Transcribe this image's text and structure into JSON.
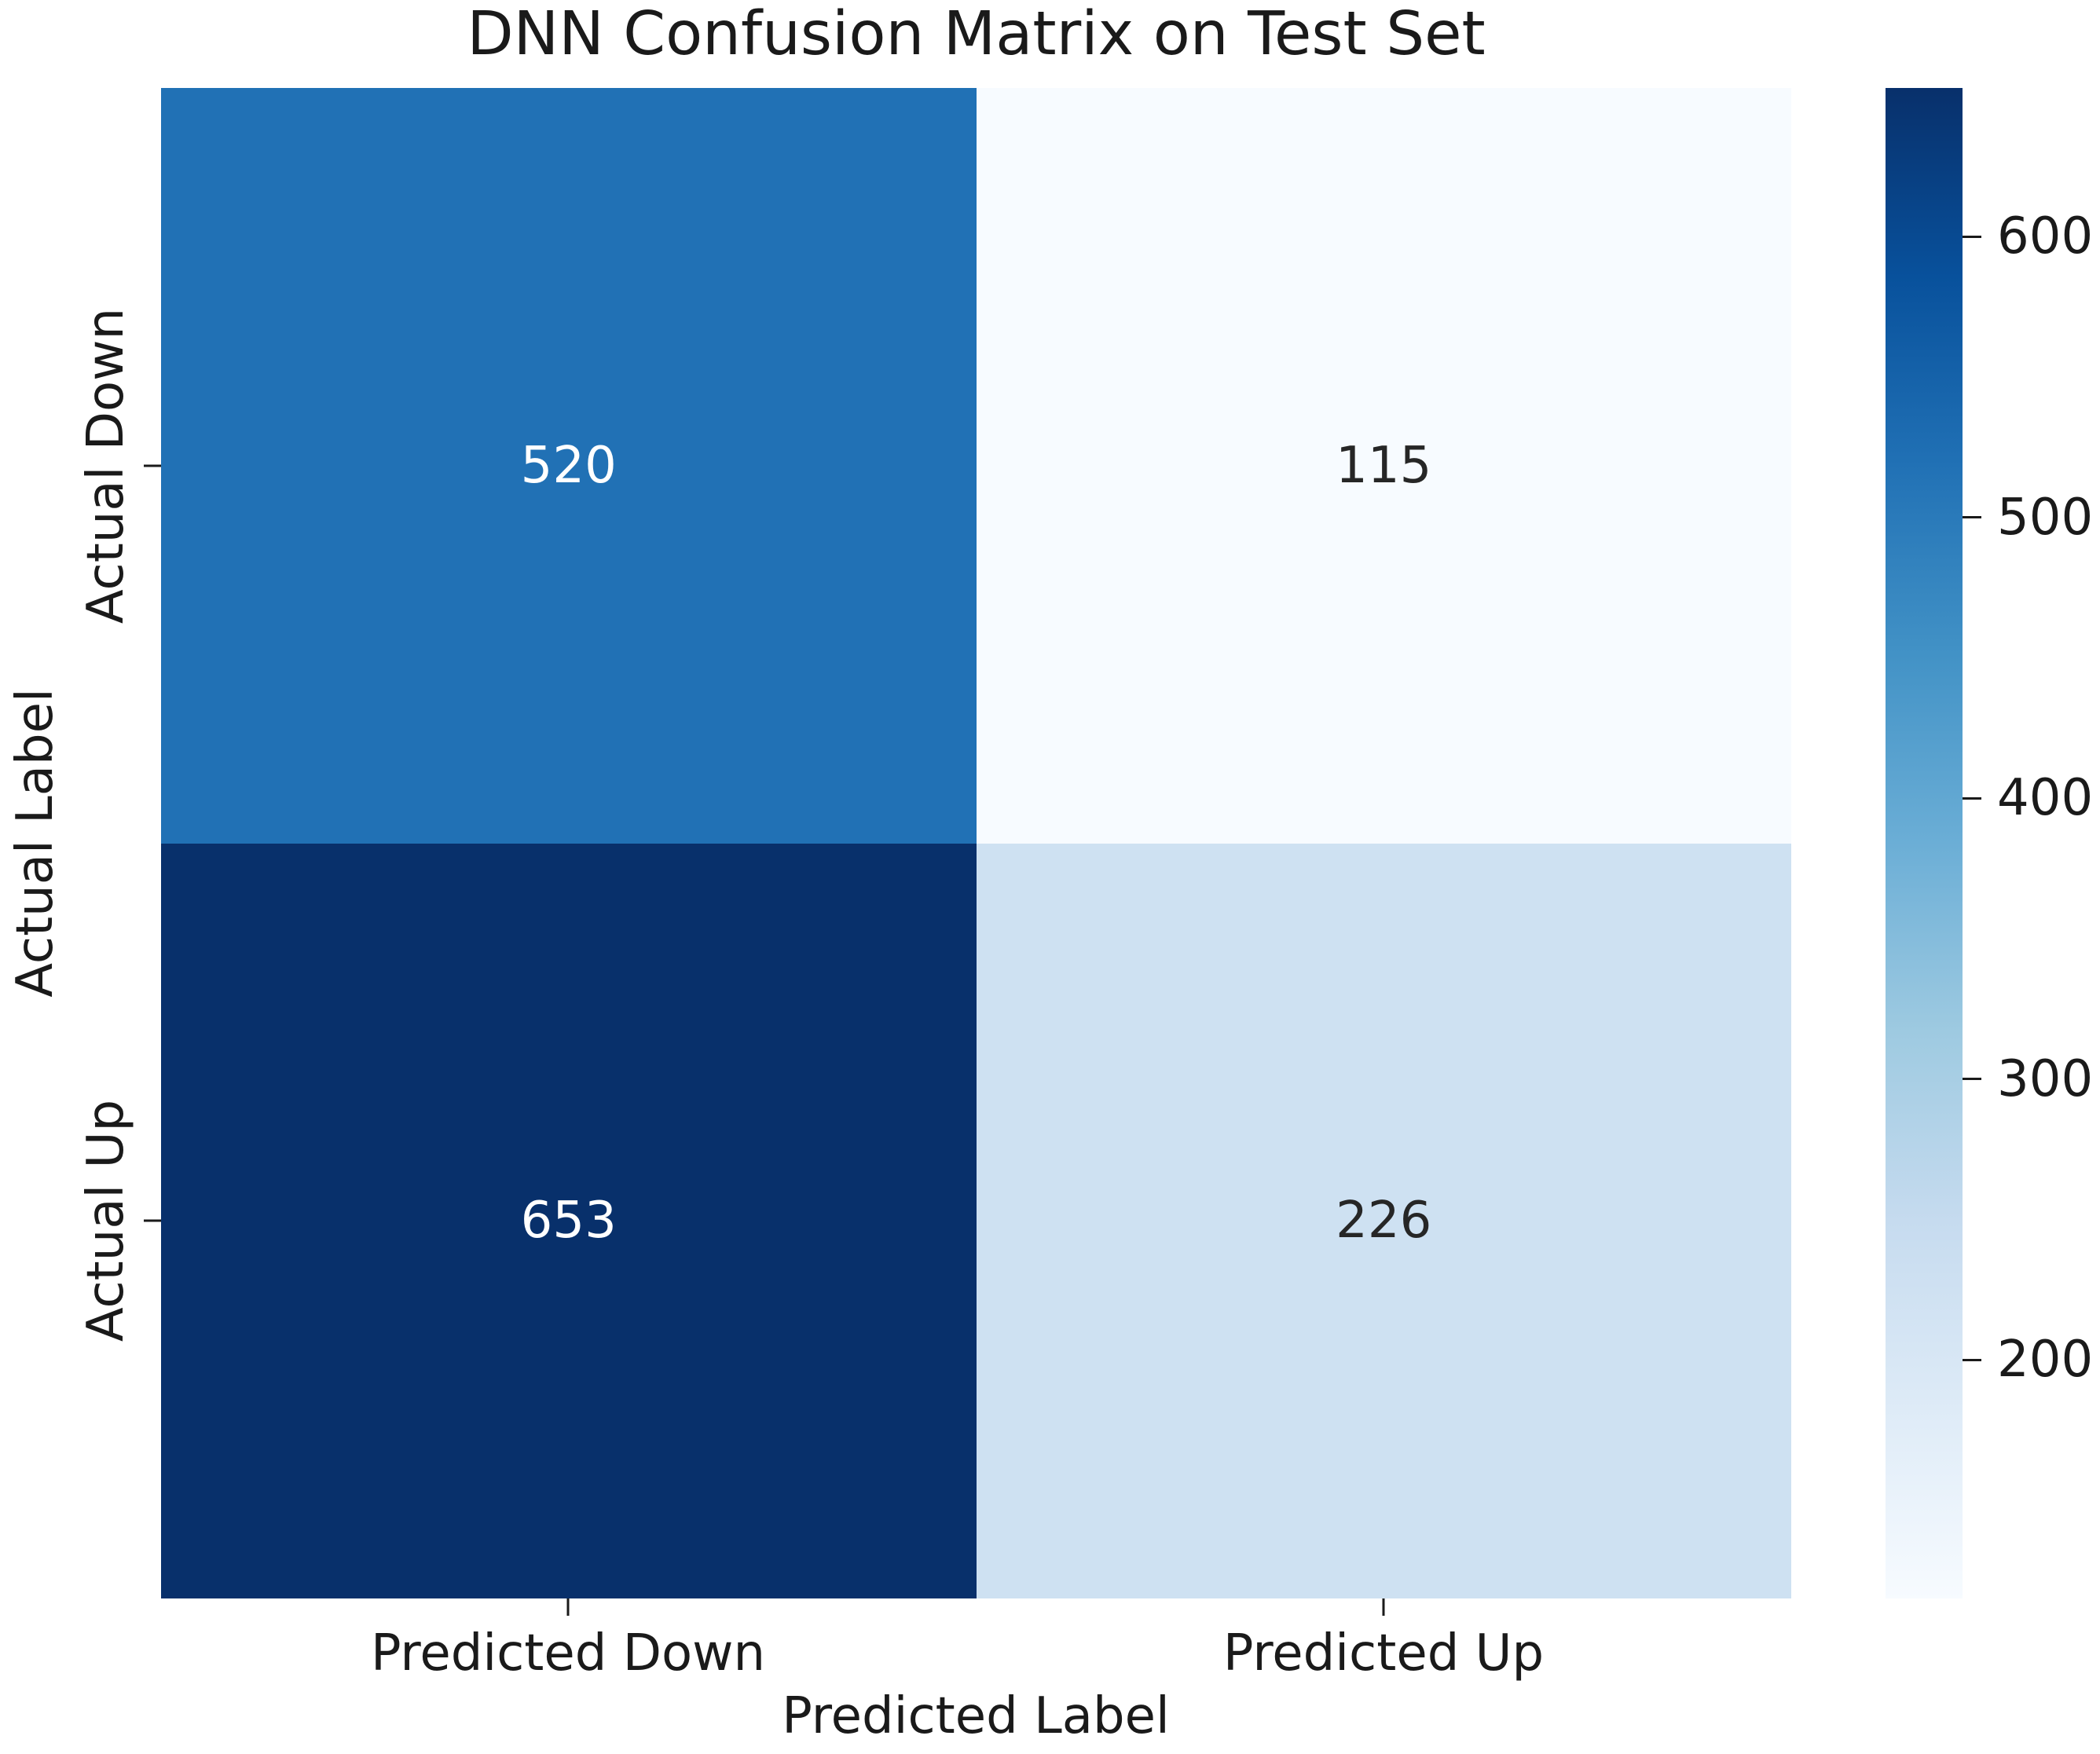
{
  "chart_data": {
    "type": "heatmap",
    "title": "DNN Confusion Matrix on Test Set",
    "xlabel": "Predicted Label",
    "ylabel": "Actual Label",
    "x_categories": [
      "Predicted Down",
      "Predicted Up"
    ],
    "y_categories": [
      "Actual Down",
      "Actual Up"
    ],
    "values": [
      [
        520,
        115
      ],
      [
        653,
        226
      ]
    ],
    "cell_colors": [
      [
        "#2171b5",
        "#f7fbff"
      ],
      [
        "#08306b",
        "#cee1f2"
      ]
    ],
    "annot_colors": [
      [
        "#ffffff",
        "#262626"
      ],
      [
        "#ffffff",
        "#262626"
      ]
    ],
    "colormap": "Blues",
    "background_color": "#ffffff",
    "grid": false,
    "colorbar": {
      "position": "right",
      "vmin": 115,
      "vmax": 653,
      "ticks": [
        600,
        500,
        400,
        300,
        200
      ],
      "gradient_stops": [
        "#f7fbff",
        "#deebf7",
        "#c6dbef",
        "#9ecae1",
        "#6baed6",
        "#4292c6",
        "#2171b5",
        "#08519c",
        "#08306b"
      ]
    }
  }
}
